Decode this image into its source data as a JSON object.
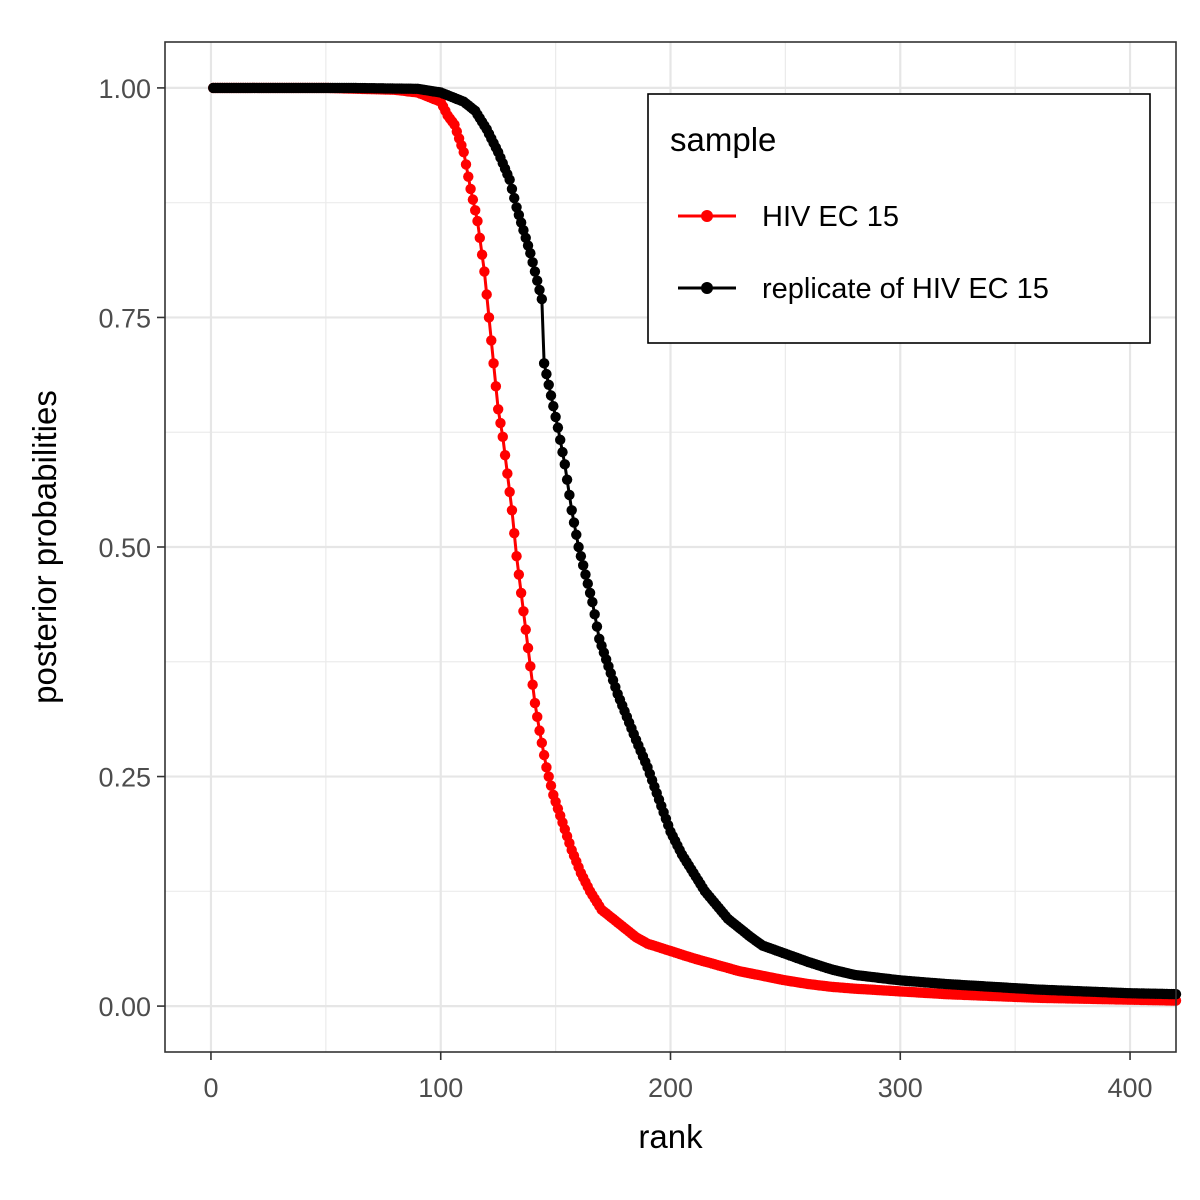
{
  "chart_data": {
    "type": "line",
    "xlabel": "rank",
    "ylabel": "posterior probabilities",
    "xlim": [
      -20,
      420
    ],
    "ylim": [
      -0.05,
      1.05
    ],
    "x_ticks": [
      0,
      100,
      200,
      300,
      400
    ],
    "x_tick_labels": [
      "0",
      "100",
      "200",
      "300",
      "400"
    ],
    "y_ticks": [
      0,
      0.25,
      0.5,
      0.75,
      1
    ],
    "y_tick_labels": [
      "0.00",
      "0.25",
      "0.50",
      "0.75",
      "1.00"
    ],
    "grid": true,
    "legend": {
      "title": "sample",
      "placement": "top-right"
    },
    "series": [
      {
        "name": "HIV EC 15",
        "color": "#ff0000",
        "points": [
          [
            0,
            1.0
          ],
          [
            50,
            1.0
          ],
          [
            80,
            0.998
          ],
          [
            90,
            0.995
          ],
          [
            95,
            0.99
          ],
          [
            100,
            0.985
          ],
          [
            103,
            0.97
          ],
          [
            106,
            0.96
          ],
          [
            110,
            0.93
          ],
          [
            113,
            0.89
          ],
          [
            116,
            0.855
          ],
          [
            119,
            0.8
          ],
          [
            121,
            0.75
          ],
          [
            123,
            0.7
          ],
          [
            125,
            0.65
          ],
          [
            127,
            0.62
          ],
          [
            129,
            0.58
          ],
          [
            131,
            0.54
          ],
          [
            133,
            0.49
          ],
          [
            135,
            0.45
          ],
          [
            137,
            0.41
          ],
          [
            139,
            0.37
          ],
          [
            141,
            0.33
          ],
          [
            143,
            0.3
          ],
          [
            146,
            0.26
          ],
          [
            149,
            0.23
          ],
          [
            153,
            0.2
          ],
          [
            157,
            0.17
          ],
          [
            161,
            0.145
          ],
          [
            165,
            0.125
          ],
          [
            170,
            0.105
          ],
          [
            175,
            0.095
          ],
          [
            180,
            0.085
          ],
          [
            185,
            0.075
          ],
          [
            190,
            0.068
          ],
          [
            200,
            0.06
          ],
          [
            210,
            0.052
          ],
          [
            220,
            0.045
          ],
          [
            230,
            0.038
          ],
          [
            240,
            0.033
          ],
          [
            250,
            0.028
          ],
          [
            260,
            0.024
          ],
          [
            270,
            0.021
          ],
          [
            280,
            0.019
          ],
          [
            300,
            0.016
          ],
          [
            320,
            0.013
          ],
          [
            340,
            0.011
          ],
          [
            360,
            0.009
          ],
          [
            380,
            0.008
          ],
          [
            400,
            0.007
          ],
          [
            420,
            0.006
          ]
        ]
      },
      {
        "name": "replicate of HIV EC 15",
        "color": "#000000",
        "points": [
          [
            0,
            1.0
          ],
          [
            60,
            1.0
          ],
          [
            90,
            0.999
          ],
          [
            100,
            0.995
          ],
          [
            105,
            0.99
          ],
          [
            110,
            0.985
          ],
          [
            115,
            0.975
          ],
          [
            120,
            0.955
          ],
          [
            125,
            0.93
          ],
          [
            130,
            0.9
          ],
          [
            133,
            0.87
          ],
          [
            136,
            0.845
          ],
          [
            139,
            0.82
          ],
          [
            142,
            0.79
          ],
          [
            144,
            0.77
          ],
          [
            145,
            0.7
          ],
          [
            148,
            0.665
          ],
          [
            151,
            0.63
          ],
          [
            154,
            0.59
          ],
          [
            157,
            0.54
          ],
          [
            160,
            0.5
          ],
          [
            163,
            0.47
          ],
          [
            166,
            0.44
          ],
          [
            169,
            0.4
          ],
          [
            173,
            0.37
          ],
          [
            177,
            0.34
          ],
          [
            181,
            0.315
          ],
          [
            185,
            0.29
          ],
          [
            190,
            0.26
          ],
          [
            195,
            0.225
          ],
          [
            200,
            0.19
          ],
          [
            205,
            0.165
          ],
          [
            210,
            0.145
          ],
          [
            215,
            0.125
          ],
          [
            220,
            0.11
          ],
          [
            225,
            0.095
          ],
          [
            230,
            0.085
          ],
          [
            235,
            0.075
          ],
          [
            240,
            0.066
          ],
          [
            250,
            0.057
          ],
          [
            260,
            0.048
          ],
          [
            270,
            0.04
          ],
          [
            280,
            0.034
          ],
          [
            290,
            0.031
          ],
          [
            300,
            0.028
          ],
          [
            320,
            0.024
          ],
          [
            340,
            0.021
          ],
          [
            360,
            0.018
          ],
          [
            380,
            0.016
          ],
          [
            400,
            0.014
          ],
          [
            420,
            0.013
          ]
        ]
      }
    ]
  }
}
